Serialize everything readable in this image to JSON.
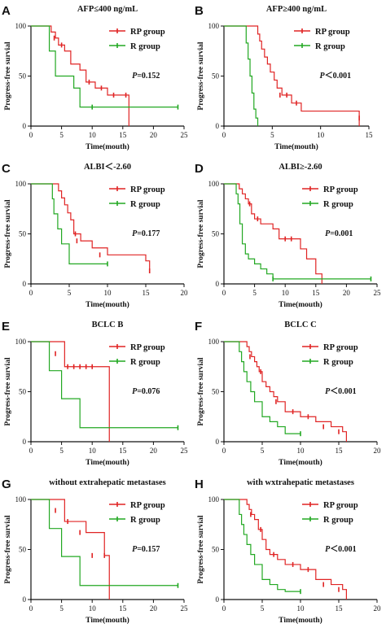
{
  "colors": {
    "rp": "#e02424",
    "r": "#22a822",
    "axis": "#111111"
  },
  "chart_data": [
    {
      "type": "line",
      "letter": "A",
      "title": "AFP≤400 ng/mL",
      "xlabel": "Time(mouth)",
      "ylabel": "Progress-free survial",
      "xlim": [
        0,
        25
      ],
      "ylim": [
        0,
        100
      ],
      "xticks": [
        0,
        5,
        10,
        15,
        20,
        25
      ],
      "yticks": [
        0,
        50,
        100
      ],
      "legend": [
        "RP group",
        "R  group"
      ],
      "p_prefix": "P",
      "p_value": "=0.152",
      "series": [
        {
          "name": "RP group",
          "x": [
            0,
            2.8,
            3.3,
            4,
            4.5,
            5.5,
            6.5,
            8,
            9,
            10.5,
            11,
            12.5,
            16,
            16
          ],
          "y": [
            100,
            100,
            94,
            88,
            81,
            75,
            62,
            56,
            44,
            38,
            38,
            31,
            0,
            0
          ],
          "censor_x": [
            3.8,
            5,
            9.5,
            11.5,
            13.5,
            15.5
          ],
          "censor_y": [
            88,
            81,
            44,
            38,
            31,
            31
          ]
        },
        {
          "name": "R  group",
          "x": [
            0,
            2.5,
            3,
            4,
            6,
            7,
            8,
            24
          ],
          "y": [
            100,
            100,
            75,
            50,
            50,
            38,
            19,
            19
          ],
          "censor_x": [
            10,
            24
          ],
          "censor_y": [
            19,
            19
          ]
        }
      ]
    },
    {
      "type": "line",
      "letter": "B",
      "title": "AFP≥400 ng/mL",
      "xlabel": "Time(mouth)",
      "ylabel": "Progress-free survial",
      "xlim": [
        0,
        15
      ],
      "ylim": [
        0,
        100
      ],
      "xticks": [
        0,
        5,
        10,
        15
      ],
      "yticks": [
        0,
        50,
        100
      ],
      "legend": [
        "RP group",
        "R  group"
      ],
      "p_prefix": "P",
      "p_value": "＜0.001",
      "series": [
        {
          "name": "RP group",
          "x": [
            0,
            3.3,
            3.5,
            3.7,
            3.9,
            4.2,
            4.5,
            4.8,
            5.2,
            5.5,
            6,
            7,
            8,
            14,
            14
          ],
          "y": [
            100,
            100,
            92,
            85,
            77,
            69,
            62,
            54,
            46,
            38,
            31,
            23,
            15,
            8,
            0
          ],
          "censor_x": [
            5.8,
            6.5,
            7.5,
            14
          ],
          "censor_y": [
            31,
            31,
            23,
            8
          ]
        },
        {
          "name": "R  group",
          "x": [
            0,
            2,
            2.3,
            2.5,
            2.7,
            2.9,
            3.1,
            3.3,
            3.5
          ],
          "y": [
            100,
            100,
            83,
            67,
            50,
            33,
            17,
            8,
            0
          ],
          "censor_x": [],
          "censor_y": []
        }
      ]
    },
    {
      "type": "line",
      "letter": "C",
      "title": "ALBI＜-2.60",
      "xlabel": "Time(mouth)",
      "ylabel": "Progress-free survial",
      "xlim": [
        0,
        20
      ],
      "ylim": [
        0,
        100
      ],
      "xticks": [
        0,
        5,
        10,
        15,
        20
      ],
      "yticks": [
        0,
        50,
        100
      ],
      "legend": [
        "RP group",
        "R  group"
      ],
      "p_prefix": "P",
      "p_value": "=0.177",
      "series": [
        {
          "name": "RP group",
          "x": [
            0,
            3.3,
            3.6,
            4,
            4.4,
            4.8,
            5.2,
            5.6,
            6.5,
            8,
            10,
            15,
            15.5
          ],
          "y": [
            100,
            100,
            93,
            86,
            79,
            71,
            64,
            50,
            43,
            36,
            29,
            23,
            13
          ],
          "censor_x": [
            5.8,
            6,
            9,
            15.5
          ],
          "censor_y": [
            50,
            43,
            29,
            13
          ]
        },
        {
          "name": "R  group",
          "x": [
            0,
            2.5,
            2.8,
            3,
            3.5,
            4,
            5,
            10
          ],
          "y": [
            100,
            100,
            85,
            70,
            55,
            40,
            20,
            20
          ],
          "censor_x": [
            10
          ],
          "censor_y": [
            20
          ]
        }
      ]
    },
    {
      "type": "line",
      "letter": "D",
      "title": "ALBI≥-2.60",
      "xlabel": "Time(mouth)",
      "ylabel": "Progress-free survial",
      "xlim": [
        0,
        25
      ],
      "ylim": [
        0,
        100
      ],
      "xticks": [
        0,
        5,
        10,
        15,
        20,
        25
      ],
      "yticks": [
        0,
        50,
        100
      ],
      "legend": [
        "RP group",
        "R  group"
      ],
      "p_prefix": "P",
      "p_value": "=0.001",
      "series": [
        {
          "name": "RP group",
          "x": [
            0,
            2,
            2.5,
            3,
            3.5,
            4,
            4.5,
            5,
            6,
            8,
            9,
            12.5,
            13.5,
            15,
            16
          ],
          "y": [
            100,
            100,
            95,
            90,
            85,
            80,
            70,
            65,
            60,
            55,
            45,
            35,
            25,
            10,
            0
          ],
          "censor_x": [
            4.2,
            5.5,
            10,
            11
          ],
          "censor_y": [
            80,
            65,
            45,
            45
          ]
        },
        {
          "name": "R  group",
          "x": [
            0,
            1.5,
            2,
            2.3,
            2.6,
            3,
            3.5,
            4,
            5,
            6,
            7,
            8,
            24
          ],
          "y": [
            100,
            100,
            90,
            80,
            60,
            40,
            30,
            25,
            20,
            15,
            10,
            5,
            5
          ],
          "censor_x": [
            8,
            24
          ],
          "censor_y": [
            5,
            5
          ]
        }
      ]
    },
    {
      "type": "line",
      "letter": "E",
      "title": "BCLC B",
      "xlabel": "Time(mouth)",
      "ylabel": "Progress-free survial",
      "xlim": [
        0,
        25
      ],
      "ylim": [
        0,
        100
      ],
      "xticks": [
        0,
        5,
        10,
        15,
        20,
        25
      ],
      "yticks": [
        0,
        50,
        100
      ],
      "legend": [
        "RP group",
        "R  group"
      ],
      "p_prefix": "P",
      "p_value": "=0.076",
      "series": [
        {
          "name": "RP group",
          "x": [
            0,
            3.5,
            5.5,
            12.8,
            12.8
          ],
          "y": [
            100,
            100,
            75,
            75,
            0
          ],
          "censor_x": [
            4,
            6,
            7,
            8,
            9,
            10
          ],
          "censor_y": [
            88,
            75,
            75,
            75,
            75,
            75
          ]
        },
        {
          "name": "R  group",
          "x": [
            0,
            2.5,
            3,
            5,
            8,
            24
          ],
          "y": [
            100,
            100,
            71,
            43,
            14,
            14
          ],
          "censor_x": [
            24
          ],
          "censor_y": [
            14
          ]
        }
      ]
    },
    {
      "type": "line",
      "letter": "F",
      "title": "BCLC C",
      "xlabel": "Time(mouth)",
      "ylabel": "Progress-free survial",
      "xlim": [
        0,
        20
      ],
      "ylim": [
        0,
        100
      ],
      "xticks": [
        0,
        5,
        10,
        15,
        20
      ],
      "yticks": [
        0,
        50,
        100
      ],
      "legend": [
        "RP group",
        "R  group"
      ],
      "p_prefix": "P",
      "p_value": "＜0.001",
      "series": [
        {
          "name": "RP group",
          "x": [
            0,
            2.5,
            3,
            3.3,
            3.6,
            4,
            4.3,
            4.6,
            5,
            5.5,
            6,
            6.5,
            7,
            8,
            10,
            12,
            14,
            15.5,
            16
          ],
          "y": [
            100,
            100,
            95,
            90,
            85,
            80,
            75,
            70,
            60,
            55,
            50,
            45,
            40,
            30,
            25,
            20,
            15,
            10,
            0
          ],
          "censor_x": [
            3.4,
            4.8,
            6.8,
            9,
            11,
            13,
            15
          ],
          "censor_y": [
            85,
            70,
            40,
            30,
            25,
            15,
            10
          ]
        },
        {
          "name": "R  group",
          "x": [
            0,
            1.5,
            2,
            2.3,
            2.6,
            3,
            3.5,
            4,
            5,
            6,
            7,
            8,
            10
          ],
          "y": [
            100,
            100,
            90,
            80,
            70,
            60,
            50,
            40,
            25,
            20,
            15,
            8,
            8
          ],
          "censor_x": [
            10
          ],
          "censor_y": [
            8
          ]
        }
      ]
    },
    {
      "type": "line",
      "letter": "G",
      "title": "without extrahepatic metastases",
      "xlabel": "Time(mouth)",
      "ylabel": "Progress-free survial",
      "xlim": [
        0,
        25
      ],
      "ylim": [
        0,
        100
      ],
      "xticks": [
        0,
        5,
        10,
        15,
        20,
        25
      ],
      "yticks": [
        0,
        50,
        100
      ],
      "legend": [
        "RP group",
        "R  group"
      ],
      "p_prefix": "P",
      "p_value": "=0.157",
      "series": [
        {
          "name": "RP group",
          "x": [
            0,
            3.5,
            5.5,
            9,
            12,
            12.8,
            12.8
          ],
          "y": [
            100,
            100,
            78,
            67,
            44,
            44,
            0
          ],
          "censor_x": [
            4,
            6,
            8,
            10,
            12
          ],
          "censor_y": [
            89,
            78,
            67,
            44,
            44
          ]
        },
        {
          "name": "R  group",
          "x": [
            0,
            2.5,
            3,
            5,
            8,
            24
          ],
          "y": [
            100,
            100,
            71,
            43,
            14,
            14
          ],
          "censor_x": [
            24
          ],
          "censor_y": [
            14
          ]
        }
      ]
    },
    {
      "type": "line",
      "letter": "H",
      "title": "with wxtrahepatic metastases",
      "xlabel": "Time(mouth)",
      "ylabel": "Progress-free survial",
      "xlim": [
        0,
        20
      ],
      "ylim": [
        0,
        100
      ],
      "xticks": [
        0,
        5,
        10,
        15,
        20
      ],
      "yticks": [
        0,
        50,
        100
      ],
      "legend": [
        "RP group",
        "R  group"
      ],
      "p_prefix": "P",
      "p_value": "＜0.001",
      "series": [
        {
          "name": "RP group",
          "x": [
            0,
            2.5,
            3,
            3.3,
            3.6,
            4,
            4.5,
            5,
            5.5,
            6,
            7,
            8,
            10,
            12,
            14,
            15.5,
            16
          ],
          "y": [
            100,
            100,
            95,
            90,
            85,
            80,
            70,
            60,
            50,
            45,
            40,
            35,
            30,
            20,
            15,
            10,
            0
          ],
          "censor_x": [
            3.5,
            4.8,
            6.5,
            9,
            11,
            13,
            15
          ],
          "censor_y": [
            85,
            70,
            45,
            35,
            30,
            15,
            10
          ]
        },
        {
          "name": "R  group",
          "x": [
            0,
            1.5,
            2,
            2.3,
            2.6,
            3,
            3.5,
            4,
            5,
            6,
            7,
            8,
            10
          ],
          "y": [
            100,
            100,
            85,
            75,
            65,
            55,
            45,
            35,
            20,
            15,
            10,
            8,
            8
          ],
          "censor_x": [
            10
          ],
          "censor_y": [
            8
          ]
        }
      ]
    }
  ]
}
